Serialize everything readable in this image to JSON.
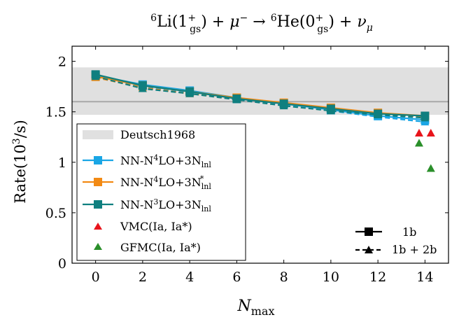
{
  "chart_data": {
    "type": "line",
    "title": {
      "base": "6Li(1+gs) + μ− → 6He(0+gs) + νμ",
      "parts": {
        "lhs_mass": "6",
        "lhs_el": "Li",
        "lhs_state": "1",
        "lhs_state_sup": "+",
        "lhs_state_sub": "gs",
        "plus1": "+",
        "muon": "μ",
        "muon_sup": "−",
        "arrow": "→",
        "rhs_mass": "6",
        "rhs_el": "He",
        "rhs_state": "0",
        "rhs_state_sup": "+",
        "rhs_state_sub": "gs",
        "plus2": "+",
        "nu": "ν",
        "nu_sub": "μ"
      }
    },
    "xlabel": {
      "main": "N",
      "sub": "max"
    },
    "ylabel": {
      "prefix": "Rate(10",
      "sup": "3",
      "suffix": "/s)"
    },
    "xlim": [
      -1,
      15
    ],
    "ylim": [
      0,
      2.15
    ],
    "xticks": [
      0,
      2,
      4,
      6,
      8,
      10,
      12,
      14
    ],
    "xtick_labels": [
      "0",
      "2",
      "4",
      "6",
      "8",
      "10",
      "12",
      "14"
    ],
    "yticks": [
      0,
      0.5,
      1,
      1.5,
      2
    ],
    "ytick_labels": [
      "0",
      "0.5",
      "1",
      "1.5",
      "2"
    ],
    "band": {
      "name": "Deutsch1968",
      "center": 1.6,
      "lower": 1.47,
      "upper": 1.94,
      "color": "#e0e0e0",
      "center_color": "#a8a8a8"
    },
    "x": [
      0,
      2,
      4,
      6,
      8,
      10,
      12,
      14
    ],
    "series": [
      {
        "name": "NN-N4LO+3Nlnl",
        "color": "#1aa6e5",
        "values_1b": [
          1.86,
          1.77,
          1.71,
          1.64,
          1.58,
          1.52,
          1.46,
          1.42
        ],
        "values_1b2b": [
          1.85,
          1.75,
          1.69,
          1.62,
          1.57,
          1.51,
          1.45,
          1.4
        ]
      },
      {
        "name": "NN-N4LO+3N*lnl",
        "color": "#f28a14",
        "values_1b": [
          1.85,
          1.76,
          1.7,
          1.64,
          1.59,
          1.54,
          1.49,
          1.46
        ],
        "values_1b2b": [
          1.84,
          1.74,
          1.68,
          1.63,
          1.58,
          1.53,
          1.48,
          1.45
        ]
      },
      {
        "name": "NN-N3LO+3Nlnl",
        "color": "#0f7f7f",
        "values_1b": [
          1.87,
          1.76,
          1.7,
          1.63,
          1.58,
          1.53,
          1.48,
          1.46
        ],
        "values_1b2b": [
          1.85,
          1.73,
          1.68,
          1.62,
          1.56,
          1.51,
          1.47,
          1.44
        ]
      }
    ],
    "points": [
      {
        "name": "VMC(Ia, Ia*)",
        "color": "#e8141b",
        "marker": "triangle",
        "data": [
          [
            13.75,
            1.29
          ],
          [
            14.25,
            1.29
          ]
        ]
      },
      {
        "name": "GFMC(Ia, Ia*)",
        "color": "#2a8f2a",
        "marker": "triangle",
        "data": [
          [
            13.75,
            1.19
          ],
          [
            14.25,
            0.94
          ]
        ]
      }
    ],
    "legend_main": {
      "placement": "left",
      "entries": [
        {
          "label": "Deutsch1968",
          "kind": "band"
        },
        {
          "base": "NN-N",
          "sup": "4",
          "mid": "LO+3N",
          "sub": "lnl",
          "sup2": "",
          "kind": "series",
          "series_index": 0
        },
        {
          "base": "NN-N",
          "sup": "4",
          "mid": "LO+3N",
          "sub": "lnl",
          "sup2": "*",
          "kind": "series",
          "series_index": 1
        },
        {
          "base": "NN-N",
          "sup": "3",
          "mid": "LO+3N",
          "sub": "lnl",
          "sup2": "",
          "kind": "series",
          "series_index": 2
        },
        {
          "label": "VMC(Ia, Ia*)",
          "kind": "points",
          "points_index": 0
        },
        {
          "label": "GFMC(Ia, Ia*)",
          "kind": "points",
          "points_index": 1
        }
      ]
    },
    "legend_style": {
      "placement": "bottom-right",
      "entries": [
        {
          "label": "1b",
          "linestyle": "solid"
        },
        {
          "label": "1b + 2b",
          "linestyle": "dashed"
        }
      ]
    },
    "grid": false
  }
}
